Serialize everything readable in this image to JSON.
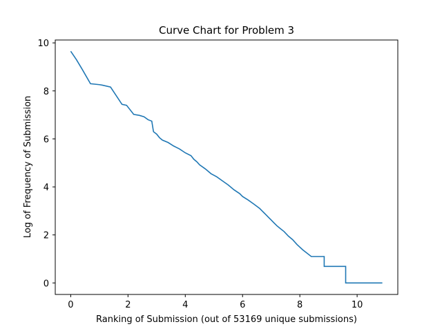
{
  "chart_data": {
    "type": "line",
    "title": "Curve Chart for Problem 3",
    "xlabel": "Ranking of Submission (out of 53169 unique submissions)",
    "ylabel": "Log of Frequency of Submission",
    "xlim": [
      -0.54,
      11.42
    ],
    "ylim": [
      -0.48,
      10.12
    ],
    "x_ticks": [
      0,
      2,
      4,
      6,
      8,
      10
    ],
    "y_ticks": [
      0,
      2,
      4,
      6,
      8,
      10
    ],
    "grid": false,
    "legend": "none",
    "series": [
      {
        "color": "#1f77b4",
        "step": "post",
        "points": [
          [
            0.0,
            9.65
          ],
          [
            0.2,
            9.3
          ],
          [
            0.4,
            8.9
          ],
          [
            0.69,
            8.3
          ],
          [
            1.0,
            8.26
          ],
          [
            1.1,
            8.24
          ],
          [
            1.39,
            8.16
          ],
          [
            1.79,
            7.44
          ],
          [
            1.95,
            7.4
          ],
          [
            2.2,
            7.02
          ],
          [
            2.4,
            6.98
          ],
          [
            2.56,
            6.92
          ],
          [
            2.7,
            6.8
          ],
          [
            2.83,
            6.74
          ],
          [
            2.89,
            6.3
          ],
          [
            3.0,
            6.2
          ],
          [
            3.1,
            6.05
          ],
          [
            3.2,
            5.95
          ],
          [
            3.4,
            5.85
          ],
          [
            3.6,
            5.7
          ],
          [
            3.8,
            5.58
          ],
          [
            4.0,
            5.42
          ],
          [
            4.2,
            5.3
          ],
          [
            4.3,
            5.15
          ],
          [
            4.4,
            5.05
          ],
          [
            4.5,
            4.92
          ],
          [
            4.7,
            4.75
          ],
          [
            4.9,
            4.55
          ],
          [
            5.1,
            4.42
          ],
          [
            5.3,
            4.25
          ],
          [
            5.5,
            4.08
          ],
          [
            5.7,
            3.88
          ],
          [
            5.9,
            3.72
          ],
          [
            6.0,
            3.6
          ],
          [
            6.2,
            3.45
          ],
          [
            6.4,
            3.28
          ],
          [
            6.6,
            3.1
          ],
          [
            6.7,
            2.98
          ],
          [
            6.8,
            2.86
          ],
          [
            6.9,
            2.74
          ],
          [
            7.0,
            2.62
          ],
          [
            7.1,
            2.5
          ],
          [
            7.2,
            2.38
          ],
          [
            7.3,
            2.28
          ],
          [
            7.45,
            2.14
          ],
          [
            7.6,
            1.95
          ],
          [
            7.75,
            1.8
          ],
          [
            7.9,
            1.6
          ],
          [
            8.1,
            1.38
          ],
          [
            8.4,
            1.1
          ],
          [
            8.85,
            0.69
          ],
          [
            9.6,
            0.0
          ],
          [
            10.88,
            0.0
          ]
        ]
      }
    ]
  }
}
